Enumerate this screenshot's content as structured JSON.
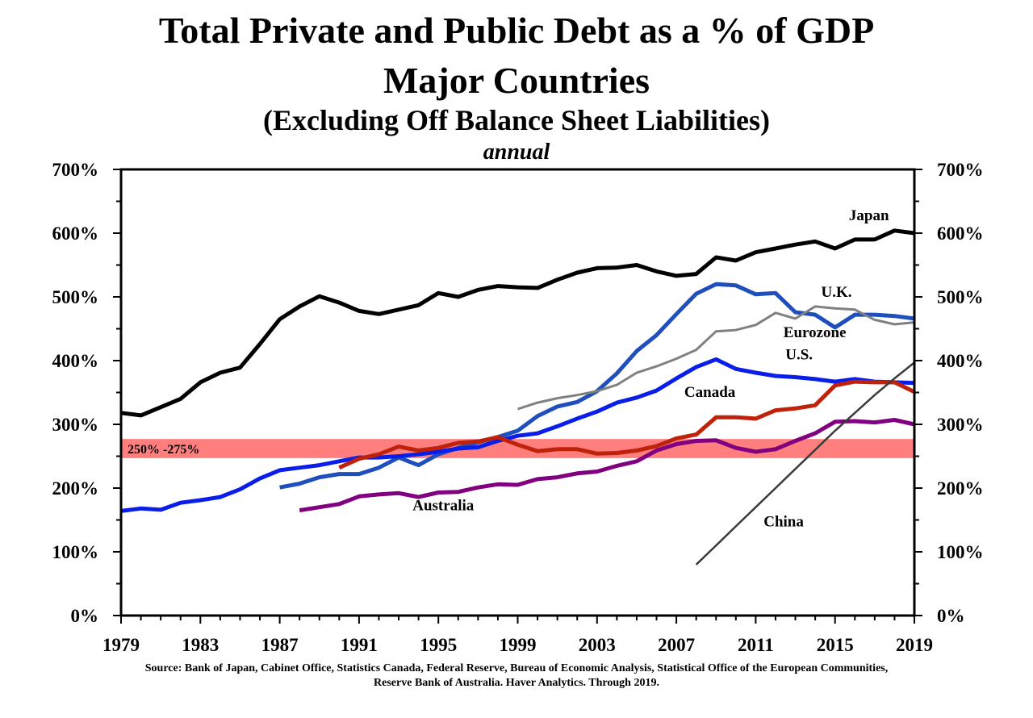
{
  "header": {
    "title": "Total Private and Public Debt as a % of GDP",
    "subtitle": "Major Countries",
    "note": "(Excluding Off Balance Sheet Liabilities)",
    "frequency": "annual"
  },
  "source": {
    "line1": "Source: Bank of Japan, Cabinet Office, Statistics Canada, Federal Reserve, Bureau of Economic Analysis, Statistical Office of the European Communities,",
    "line2": "Reserve Bank of Australia. Haver Analytics. Through 2019."
  },
  "chart_data": {
    "type": "line",
    "title": "Total Private and Public Debt as a % of GDP",
    "xlabel": "",
    "ylabel": "",
    "xlim": [
      1979,
      2019
    ],
    "ylim": [
      0,
      700
    ],
    "x_ticks": [
      "1979",
      "1983",
      "1987",
      "1991",
      "1995",
      "1999",
      "2003",
      "2007",
      "2011",
      "2015",
      "2019"
    ],
    "y_ticks": [
      "0%",
      "100%",
      "200%",
      "300%",
      "400%",
      "500%",
      "600%",
      "700%"
    ],
    "band": {
      "label": "250% -275%",
      "from": 247,
      "to": 277,
      "color": "#ff7f7f"
    },
    "series": [
      {
        "name": "Japan",
        "color": "#000000",
        "width": 5,
        "start": 1979,
        "values": [
          318,
          314,
          327,
          340,
          366,
          381,
          389,
          426,
          465,
          485,
          501,
          491,
          478,
          473,
          480,
          487,
          506,
          500,
          511,
          517,
          515,
          514,
          527,
          538,
          545,
          546,
          550,
          540,
          533,
          536,
          562,
          557,
          570,
          576,
          582,
          587,
          576,
          590,
          590,
          604,
          600
        ],
        "label_x": 2015.7,
        "label_y": 620
      },
      {
        "name": "U.K.",
        "color": "#1f4fbd",
        "width": 5,
        "start": 1987,
        "values": [
          201,
          207,
          217,
          222,
          222,
          232,
          248,
          236,
          253,
          263,
          272,
          280,
          290,
          313,
          328,
          335,
          352,
          380,
          415,
          440,
          473,
          505,
          520,
          518,
          504,
          506,
          476,
          472,
          452,
          472,
          472,
          470,
          466
        ],
        "label_x": 2014.3,
        "label_y": 500
      },
      {
        "name": "Eurozone",
        "color": "#808080",
        "width": 3,
        "start": 1999,
        "values": [
          324,
          334,
          341,
          346,
          352,
          362,
          381,
          391,
          403,
          417,
          446,
          448,
          456,
          475,
          466,
          485,
          482,
          480,
          464,
          457,
          460
        ],
        "label_x": 2012.4,
        "label_y": 437
      },
      {
        "name": "U.S.",
        "color": "#0a1eea",
        "width": 5,
        "start": 1979,
        "values": [
          164,
          168,
          166,
          177,
          181,
          186,
          198,
          215,
          228,
          232,
          236,
          242,
          248,
          248,
          250,
          253,
          257,
          262,
          264,
          274,
          282,
          286,
          297,
          309,
          320,
          334,
          342,
          353,
          372,
          390,
          402,
          387,
          381,
          376,
          374,
          371,
          367,
          371,
          367,
          366,
          365
        ],
        "label_x": 2012.5,
        "label_y": 402
      },
      {
        "name": "Canada",
        "color": "#c0210a",
        "width": 5,
        "start": 1990,
        "values": [
          232,
          246,
          253,
          265,
          259,
          263,
          271,
          273,
          280,
          268,
          258,
          261,
          261,
          254,
          255,
          259,
          266,
          278,
          284,
          311,
          311,
          309,
          322,
          325,
          330,
          361,
          367,
          366,
          366,
          351
        ],
        "label_x": 2007.4,
        "label_y": 343
      },
      {
        "name": "Australia",
        "color": "#800080",
        "width": 5,
        "start": 1988,
        "values": [
          165,
          170,
          175,
          187,
          190,
          192,
          186,
          193,
          194,
          201,
          206,
          205,
          214,
          217,
          223,
          226,
          235,
          242,
          259,
          269,
          274,
          275,
          263,
          257,
          261,
          274,
          286,
          304,
          305,
          303,
          307,
          300
        ],
        "label_x": 1993.7,
        "label_y": 165
      },
      {
        "name": "China",
        "color": "#3a3a3a",
        "width": 2.5,
        "start": 2008,
        "values": [
          80,
          110,
          140,
          170,
          200,
          230,
          260,
          290,
          318,
          346,
          372,
          397
        ],
        "label_x": 2011.4,
        "label_y": 140
      }
    ]
  }
}
